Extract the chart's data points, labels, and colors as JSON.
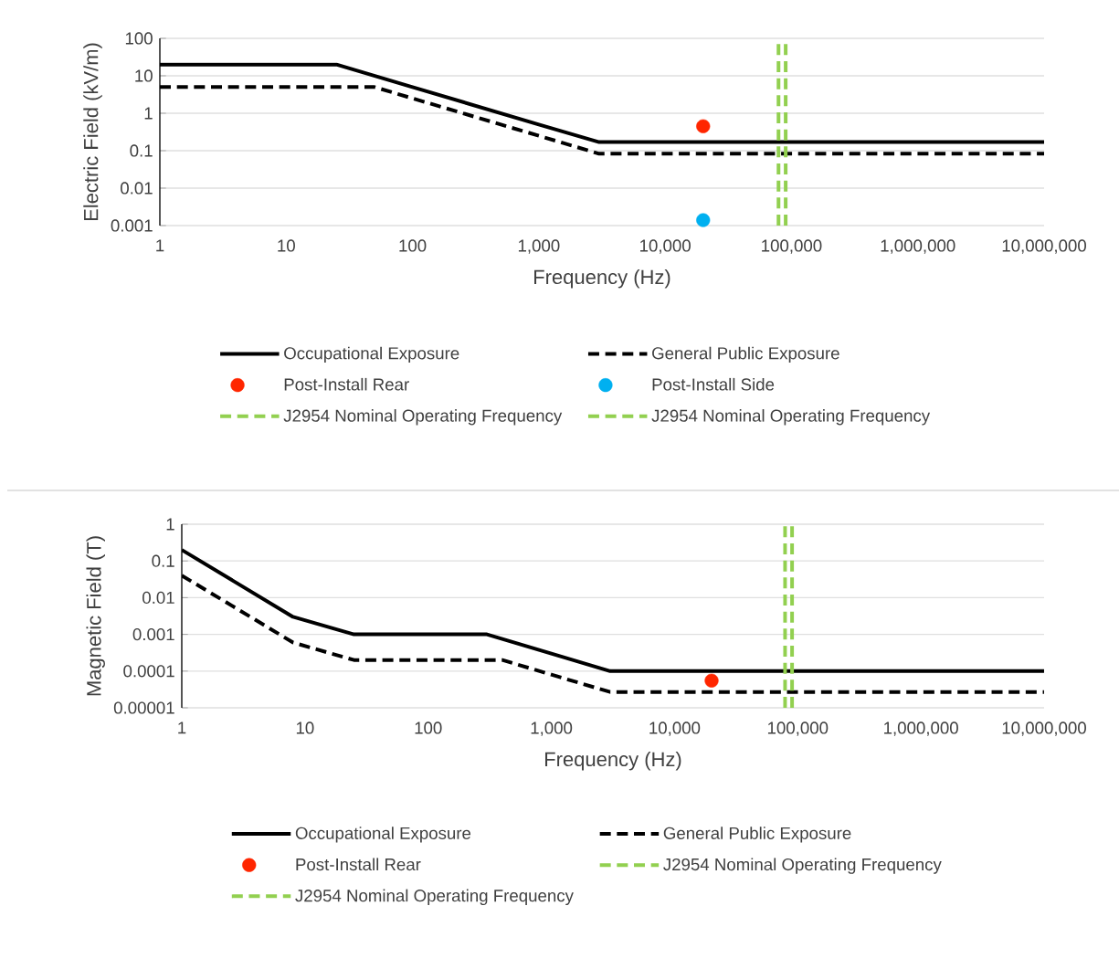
{
  "chart_data": [
    {
      "type": "line",
      "xlabel": "Frequency (Hz)",
      "ylabel": "Electric Field (kV/m)",
      "log": "xy",
      "grid": "y",
      "legend": "bottom",
      "xlim": [
        1,
        10000000
      ],
      "ylim": [
        0.001,
        100
      ],
      "xticks": [
        1,
        10,
        100,
        {
          "value": 1000,
          "label": "1,000"
        },
        {
          "value": 10000,
          "label": "10,000"
        },
        {
          "value": 100000,
          "label": "100,000"
        },
        {
          "value": 1000000,
          "label": "1,000,000"
        },
        {
          "value": 10000000,
          "label": "10,000,000"
        }
      ],
      "yticks": [
        0.001,
        0.01,
        0.1,
        1,
        10,
        100
      ],
      "series": [
        {
          "name": "Occupational Exposure",
          "color": "#000000",
          "line_style": "solid",
          "x": [
            1,
            10,
            25,
            100,
            1000,
            3000,
            10000000
          ],
          "values": [
            20,
            20,
            20,
            5,
            0.5,
            0.17,
            0.17
          ]
        },
        {
          "name": "General Public Exposure",
          "color": "#000000",
          "line_style": "dashed",
          "x": [
            1,
            10,
            50,
            100,
            1000,
            3000,
            10000000
          ],
          "values": [
            5,
            5,
            5,
            2.5,
            0.25,
            0.083,
            0.083
          ]
        },
        {
          "name": "Post-Install Rear",
          "type": "scatter",
          "marker": "circle",
          "color": "#ff2600",
          "x": [
            20000
          ],
          "values": [
            0.45
          ]
        },
        {
          "name": "Post-Install Side",
          "type": "scatter",
          "marker": "circle",
          "color": "#00b0f0",
          "x": [
            20000
          ],
          "values": [
            0.0014
          ]
        },
        {
          "name": "J2954 Nominal Operating Frequency",
          "color": "#92d050",
          "line_style": "dashed",
          "x": [
            79000,
            79000
          ],
          "values": [
            0.001,
            100
          ]
        },
        {
          "name": "J2954 Nominal Operating Frequency",
          "color": "#92d050",
          "line_style": "dashed",
          "x": [
            90000,
            90000
          ],
          "values": [
            0.001,
            100
          ]
        }
      ]
    },
    {
      "type": "line",
      "xlabel": "Frequency (Hz)",
      "ylabel": "Magnetic Field (T)",
      "log": "xy",
      "grid": "y",
      "legend": "bottom",
      "xlim": [
        1,
        10000000
      ],
      "ylim": [
        1e-05,
        1
      ],
      "xticks": [
        1,
        10,
        100,
        {
          "value": 1000,
          "label": "1,000"
        },
        {
          "value": 10000,
          "label": "10,000"
        },
        {
          "value": 100000,
          "label": "100,000"
        },
        {
          "value": 1000000,
          "label": "1,000,000"
        },
        {
          "value": 10000000,
          "label": "10,000,000"
        }
      ],
      "yticks": [
        {
          "value": 1e-05,
          "label": "0.00001"
        },
        0.0001,
        0.001,
        0.01,
        0.1,
        1
      ],
      "series": [
        {
          "name": "Occupational Exposure",
          "color": "#000000",
          "line_style": "solid",
          "x": [
            1,
            8,
            25,
            100,
            300,
            1000,
            3000,
            10000000
          ],
          "values": [
            0.2,
            0.003,
            0.001,
            0.001,
            0.001,
            0.0003,
            0.0001,
            0.0001
          ]
        },
        {
          "name": "General Public Exposure",
          "color": "#000000",
          "line_style": "dashed",
          "x": [
            1,
            8,
            25,
            100,
            400,
            1000,
            3000,
            10000000
          ],
          "values": [
            0.04,
            0.0006,
            0.0002,
            0.0002,
            0.0002,
            8e-05,
            2.7e-05,
            2.7e-05
          ]
        },
        {
          "name": "Post-Install Rear",
          "type": "scatter",
          "marker": "circle",
          "color": "#ff2600",
          "x": [
            20000
          ],
          "values": [
            5.5e-05
          ]
        },
        {
          "name": "J2954 Nominal Operating Frequency",
          "color": "#92d050",
          "line_style": "dashed",
          "x": [
            79000,
            79000
          ],
          "values": [
            1e-05,
            1
          ]
        },
        {
          "name": "J2954 Nominal Operating Frequency",
          "color": "#92d050",
          "line_style": "dashed",
          "x": [
            90000,
            90000
          ],
          "values": [
            1e-05,
            1
          ]
        }
      ]
    }
  ]
}
